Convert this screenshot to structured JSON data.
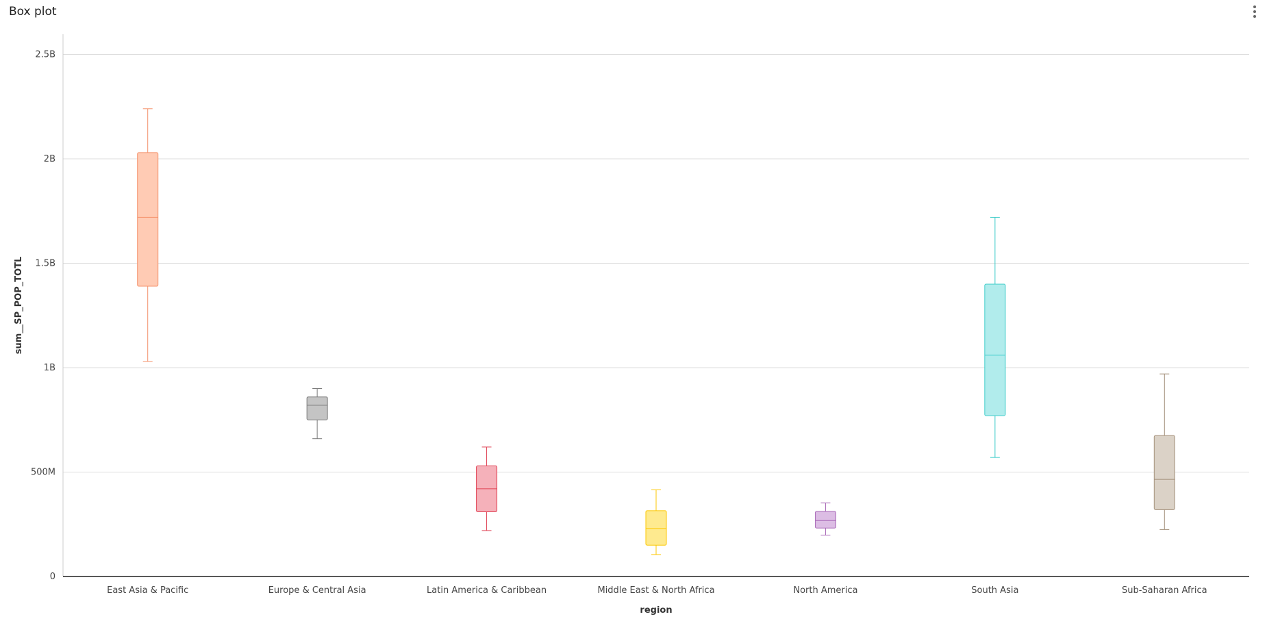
{
  "panel": {
    "title": "Box plot"
  },
  "chart_data": {
    "type": "boxplot",
    "xlabel": "region",
    "ylabel": "sum__SP_POP_TOTL",
    "ylim": [
      0,
      2600000000
    ],
    "yticks": [
      0,
      500000000,
      1000000000,
      1500000000,
      2000000000,
      2500000000
    ],
    "ytick_labels": [
      "0",
      "500M",
      "1B",
      "1.5B",
      "2B",
      "2.5B"
    ],
    "grid": true,
    "categories": [
      "East Asia & Pacific",
      "Europe & Central Asia",
      "Latin America & Caribbean",
      "Middle East & North Africa",
      "North America",
      "South Asia",
      "Sub-Saharan Africa"
    ],
    "colors": [
      "#f4916a",
      "#7a7a7a",
      "#e04355",
      "#fcc700",
      "#a868b7",
      "#3cccc9",
      "#a38f79"
    ],
    "fills": [
      "#ffcbb4",
      "#c4c4c4",
      "#f5b1ba",
      "#feea8f",
      "#dcbde4",
      "#b1ecec",
      "#dbd2c7"
    ],
    "boxes": [
      {
        "min": 1030000000,
        "q1": 1390000000,
        "median": 1720000000,
        "q3": 2030000000,
        "max": 2240000000
      },
      {
        "min": 660000000,
        "q1": 750000000,
        "median": 820000000,
        "q3": 860000000,
        "max": 900000000
      },
      {
        "min": 220000000,
        "q1": 310000000,
        "median": 420000000,
        "q3": 530000000,
        "max": 620000000
      },
      {
        "min": 105000000,
        "q1": 150000000,
        "median": 230000000,
        "q3": 315000000,
        "max": 415000000
      },
      {
        "min": 198000000,
        "q1": 232000000,
        "median": 268000000,
        "q3": 312000000,
        "max": 352000000
      },
      {
        "min": 570000000,
        "q1": 770000000,
        "median": 1060000000,
        "q3": 1400000000,
        "max": 1720000000
      },
      {
        "min": 225000000,
        "q1": 320000000,
        "median": 465000000,
        "q3": 675000000,
        "max": 970000000
      }
    ]
  }
}
